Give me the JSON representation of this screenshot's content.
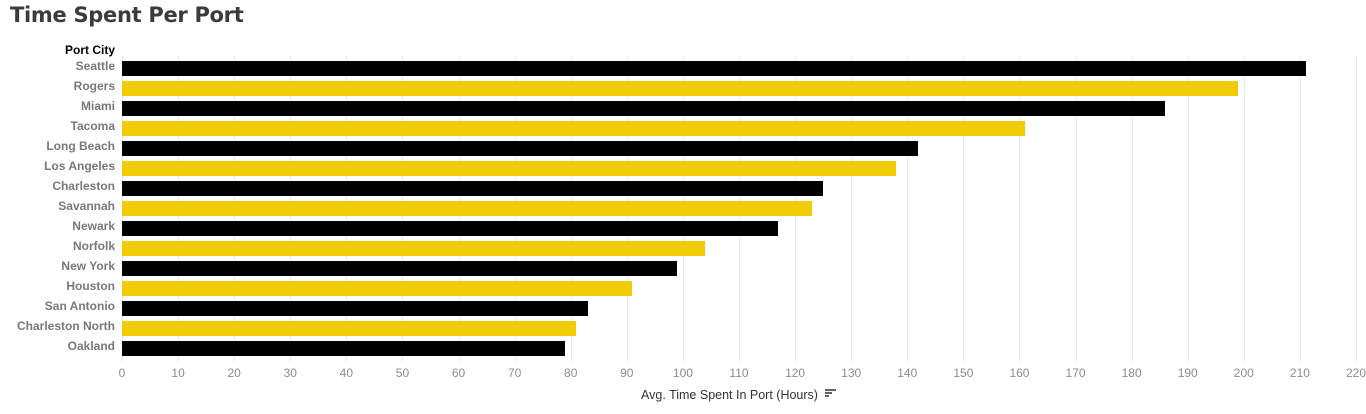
{
  "title": "Time Spent Per Port",
  "colors": {
    "bar_black": "#000000",
    "bar_yellow": "#f1cc04",
    "gridline": "#e9e9e9",
    "tick_label": "#8c8c8c",
    "row_label": "#787878",
    "row_header": "#000000",
    "title": "#3b3b3b",
    "axis_label": "#333333"
  },
  "axis": {
    "row_header": "Port City",
    "xlabel": "Avg. Time Spent In Port (Hours)",
    "sort_indicator": "sort-descending-icon"
  },
  "chart_data": {
    "type": "bar",
    "orientation": "horizontal",
    "title": "Time Spent Per Port",
    "xlabel": "Avg. Time Spent In Port (Hours)",
    "ylabel": "Port City",
    "xlim": [
      0,
      220
    ],
    "grid": true,
    "sort": "descending",
    "ticks": [
      0,
      10,
      20,
      30,
      40,
      50,
      60,
      70,
      80,
      90,
      100,
      110,
      120,
      130,
      140,
      150,
      160,
      170,
      180,
      190,
      200,
      210,
      220
    ],
    "categories": [
      "Seattle",
      "Rogers",
      "Miami",
      "Tacoma",
      "Long Beach",
      "Los Angeles",
      "Charleston",
      "Savannah",
      "Newark",
      "Norfolk",
      "New York",
      "Houston",
      "San Antonio",
      "Charleston North",
      "Oakland"
    ],
    "values": [
      211,
      199,
      186,
      161,
      142,
      138,
      125,
      123,
      117,
      104,
      99,
      91,
      83,
      81,
      79
    ],
    "bar_color_pattern": [
      "#000000",
      "#f1cc04"
    ]
  }
}
